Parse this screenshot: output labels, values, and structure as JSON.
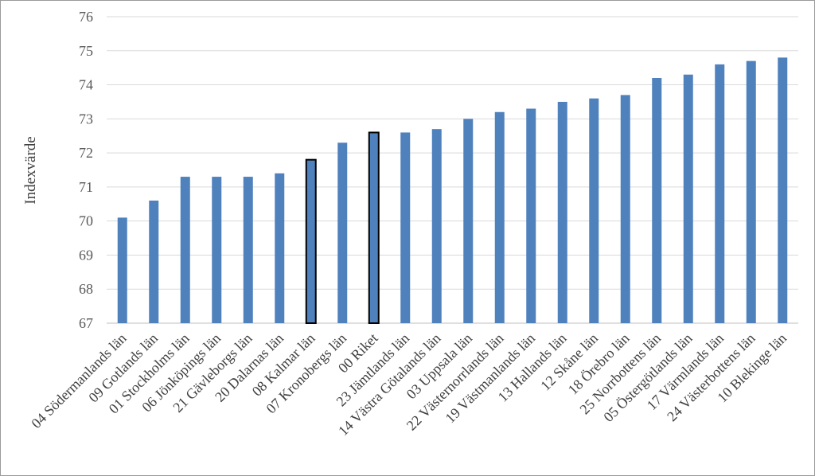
{
  "chart_data": {
    "type": "bar",
    "title": "",
    "xlabel": "",
    "ylabel": "Indexvärde",
    "ylim": [
      67,
      76
    ],
    "yticks": [
      67,
      68,
      69,
      70,
      71,
      72,
      73,
      74,
      75,
      76
    ],
    "grid": true,
    "bar_color": "#4f81bd",
    "highlight_outline_color": "#000000",
    "categories": [
      "04 Södermanlands län",
      "09 Gotlands län",
      "01 Stockholms län",
      "06 Jönköpings län",
      "21 Gävleborgs län",
      "20 Dalarnas län",
      "08 Kalmar län",
      "07 Kronobergs län",
      "00 Riket",
      "23 Jämtlands län",
      "14 Västra Götalands län",
      "03 Uppsala län",
      "22 Västernorrlands län",
      "19 Västmanlands län",
      "13 Hallands län",
      "12 Skåne län",
      "18 Örebro län",
      "25 Norrbottens län",
      "05 Östergötlands län",
      "17 Värmlands län",
      "24 Västerbottens län",
      "10 Blekinge län"
    ],
    "values": [
      70.1,
      70.6,
      71.3,
      71.3,
      71.3,
      71.4,
      71.8,
      72.3,
      72.6,
      72.6,
      72.7,
      73.0,
      73.2,
      73.3,
      73.5,
      73.6,
      73.7,
      74.2,
      74.3,
      74.6,
      74.7,
      74.8
    ],
    "highlighted": [
      "08 Kalmar län",
      "00 Riket"
    ]
  }
}
